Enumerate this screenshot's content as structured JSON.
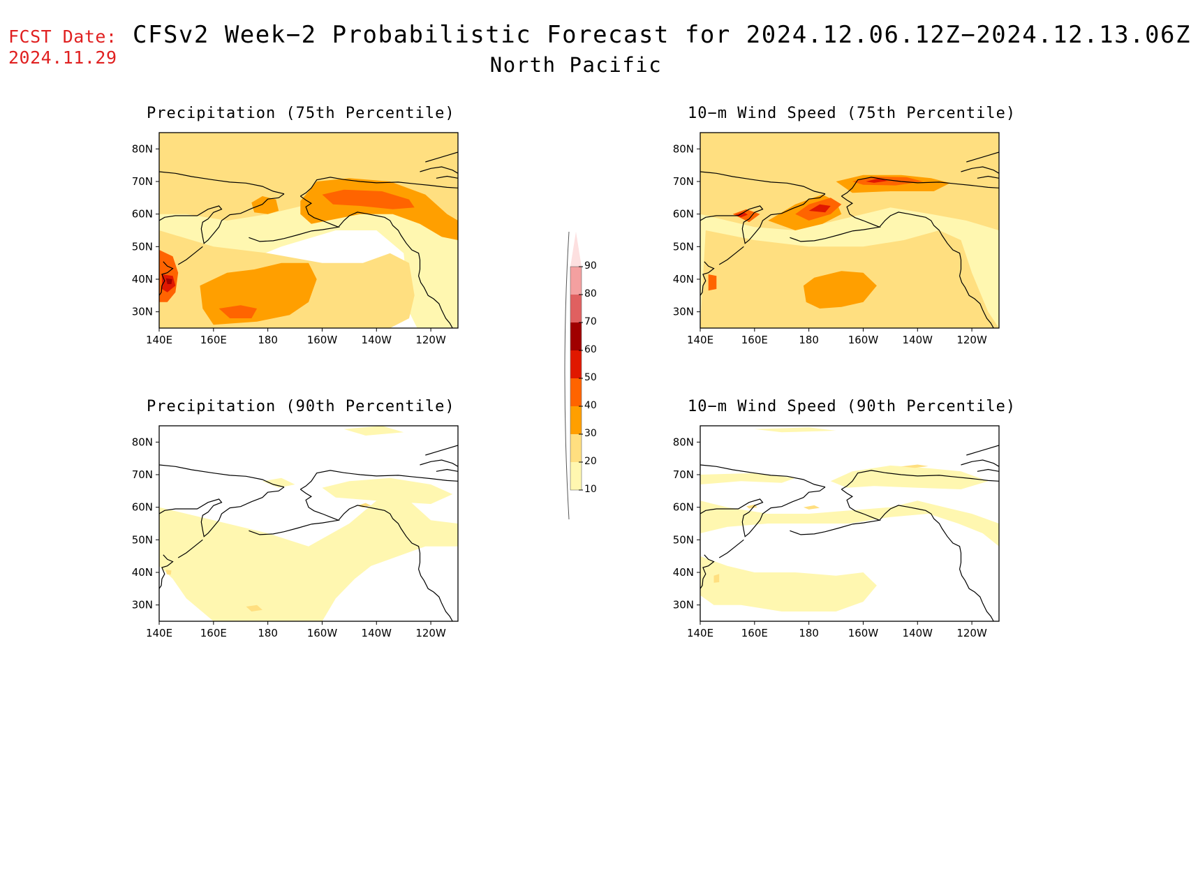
{
  "header": {
    "fcst_label": "FCST Date:",
    "fcst_date": "2024.11.29",
    "title": "CFSv2 Week−2 Probabilistic Forecast for 2024.12.06.12Z−2024.12.13.06Z",
    "region": "North Pacific"
  },
  "panels": [
    {
      "title": "Precipitation (75th Percentile)",
      "variable": "precipitation",
      "percentile": 75
    },
    {
      "title": "10−m Wind Speed (75th Percentile)",
      "variable": "wind_speed",
      "percentile": 75
    },
    {
      "title": "Precipitation (90th Percentile)",
      "variable": "precipitation",
      "percentile": 90
    },
    {
      "title": "10−m Wind Speed (90th Percentile)",
      "variable": "wind_speed",
      "percentile": 90
    }
  ],
  "axes": {
    "lat_labels": [
      "80N",
      "70N",
      "60N",
      "50N",
      "40N",
      "30N"
    ],
    "lon_labels": [
      "140E",
      "160E",
      "180",
      "160W",
      "140W",
      "120W"
    ]
  },
  "colorbar": {
    "levels": [
      "90",
      "80",
      "70",
      "60",
      "50",
      "40",
      "30",
      "20",
      "10"
    ],
    "colors": [
      "#fde0e0",
      "#f4a0a0",
      "#e06060",
      "#a00000",
      "#e01800",
      "#ff6400",
      "#ff9f00",
      "#ffdf80",
      "#fff7b0"
    ]
  },
  "palette": {
    "c10": "#fff7b0",
    "c20": "#ffdf80",
    "c30": "#ff9f00",
    "c40": "#ff6400",
    "c50": "#e01800",
    "c60": "#a00000",
    "c70": "#e06060",
    "c80": "#f4a0a0"
  }
}
